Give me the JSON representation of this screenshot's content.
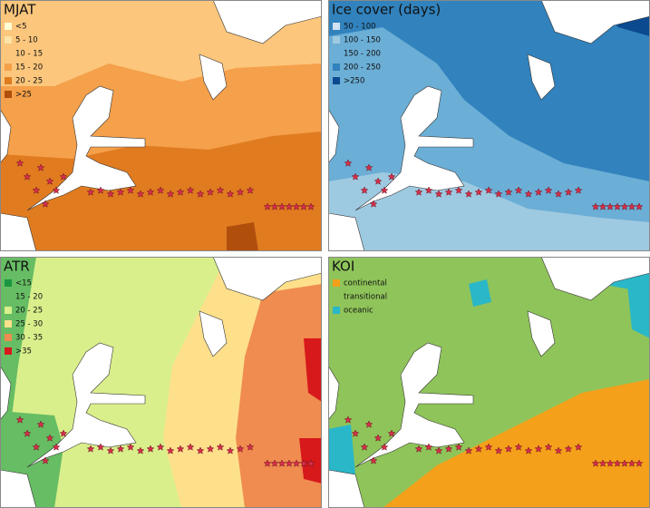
{
  "panels": [
    {
      "title": "MJAT",
      "legend": [
        {
          "label": "<5",
          "color": "#ffffd4"
        },
        {
          "label": "5 - 10",
          "color": "#fee3a8"
        },
        {
          "label": "10 - 15",
          "color": "#fcc67c"
        },
        {
          "label": "15 - 20",
          "color": "#f5a04a"
        },
        {
          "label": "20 - 25",
          "color": "#e07b20"
        },
        {
          "label": ">25",
          "color": "#b04e0c"
        }
      ]
    },
    {
      "title": "Ice cover (days)",
      "legend": [
        {
          "label": "50 - 100",
          "color": "#d0e1f2"
        },
        {
          "label": "100 - 150",
          "color": "#9ecae1"
        },
        {
          "label": "150 - 200",
          "color": "#6baed6"
        },
        {
          "label": "200 - 250",
          "color": "#3182bd"
        },
        {
          "label": ">250",
          "color": "#0b4a8f"
        }
      ]
    },
    {
      "title": "ATR",
      "legend": [
        {
          "label": "<15",
          "color": "#1a9641"
        },
        {
          "label": "15 - 20",
          "color": "#66bd63"
        },
        {
          "label": "20 - 25",
          "color": "#d9ef8b"
        },
        {
          "label": "25 - 30",
          "color": "#fee08b"
        },
        {
          "label": "30 - 35",
          "color": "#f08c4f"
        },
        {
          "label": ">35",
          "color": "#d7191c"
        }
      ]
    },
    {
      "title": "KOI",
      "legend": [
        {
          "label": "continental",
          "color": "#f5a01a"
        },
        {
          "label": "transitional",
          "color": "#8fc45a"
        },
        {
          "label": "oceanic",
          "color": "#2ab7c8"
        }
      ]
    }
  ]
}
